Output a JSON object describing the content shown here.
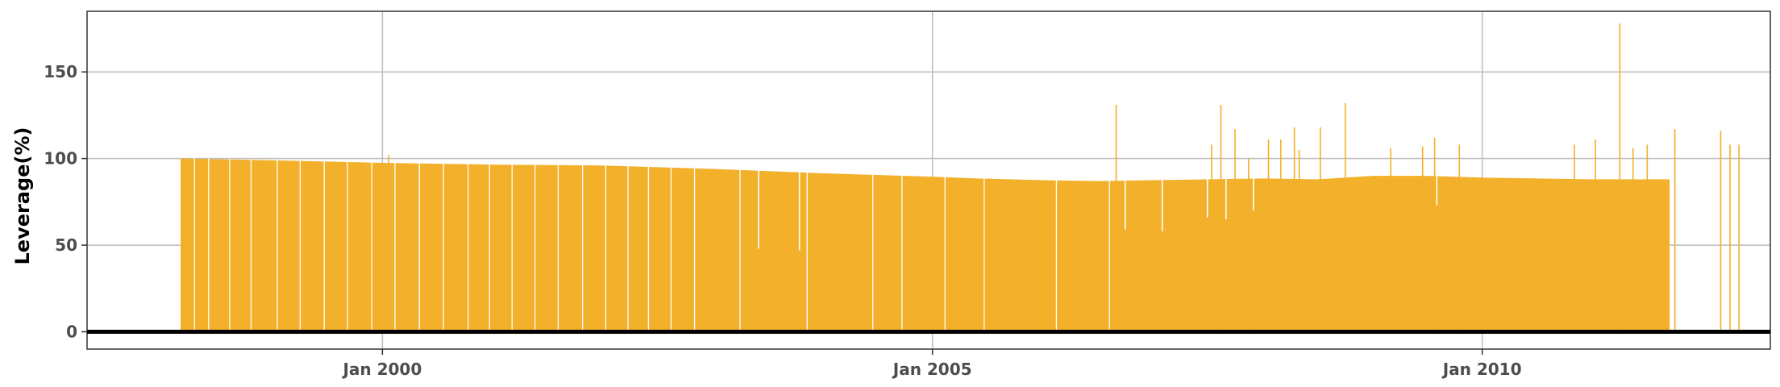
{
  "chart_data": {
    "type": "bar",
    "title": "",
    "xlabel": "",
    "ylabel": "Leverage(%)",
    "x_range": [
      "1997-04-25",
      "2012-08-15"
    ],
    "ylim": [
      -10,
      185
    ],
    "grid": true,
    "legend": "none",
    "colors": {
      "bar": "#f2b02b",
      "baseline": "#000000",
      "grid": "#bdbdbd",
      "axis_text": "#4d4d4d"
    },
    "x_ticks": [
      {
        "date": "2000-01-01",
        "label": "Jan 2000"
      },
      {
        "date": "2005-01-01",
        "label": "Jan 2005"
      },
      {
        "date": "2010-01-01",
        "label": "Jan 2010"
      }
    ],
    "y_ticks": [
      {
        "value": 0,
        "label": "0"
      },
      {
        "value": 50,
        "label": "50"
      },
      {
        "value": 100,
        "label": "100"
      },
      {
        "value": 150,
        "label": "150"
      }
    ],
    "baseline_y": 0,
    "bar_envelope": [
      {
        "date": "1998-03-01",
        "value": 100
      },
      {
        "date": "1999-01-01",
        "value": 99
      },
      {
        "date": "2000-01-01",
        "value": 97.5
      },
      {
        "date": "2001-01-01",
        "value": 96.5
      },
      {
        "date": "2002-01-01",
        "value": 96
      },
      {
        "date": "2003-01-01",
        "value": 94
      },
      {
        "date": "2004-01-01",
        "value": 91.5
      },
      {
        "date": "2005-01-01",
        "value": 89.5
      },
      {
        "date": "2005-06-01",
        "value": 88.5
      },
      {
        "date": "2006-01-01",
        "value": 87.5
      },
      {
        "date": "2006-07-01",
        "value": 87
      },
      {
        "date": "2007-01-01",
        "value": 87.5
      },
      {
        "date": "2007-07-01",
        "value": 88
      },
      {
        "date": "2008-01-01",
        "value": 88.5
      },
      {
        "date": "2008-07-01",
        "value": 88
      },
      {
        "date": "2009-01-01",
        "value": 90
      },
      {
        "date": "2009-07-01",
        "value": 90
      },
      {
        "date": "2010-01-01",
        "value": 89
      },
      {
        "date": "2010-07-01",
        "value": 88.5
      },
      {
        "date": "2011-01-01",
        "value": 88
      },
      {
        "date": "2011-09-15",
        "value": 88
      }
    ],
    "gaps": [
      {
        "date": "1998-04-15",
        "value": 0
      },
      {
        "date": "1998-06-01",
        "value": 0
      },
      {
        "date": "1998-08-10",
        "value": 0
      },
      {
        "date": "1998-10-20",
        "value": 0
      },
      {
        "date": "1999-01-15",
        "value": 0
      },
      {
        "date": "1999-04-01",
        "value": 0
      },
      {
        "date": "1999-06-20",
        "value": 0
      },
      {
        "date": "1999-09-05",
        "value": 0
      },
      {
        "date": "1999-11-25",
        "value": 0
      },
      {
        "date": "2000-02-10",
        "value": 0
      },
      {
        "date": "2000-05-01",
        "value": 0
      },
      {
        "date": "2000-07-20",
        "value": 0
      },
      {
        "date": "2000-10-10",
        "value": 0
      },
      {
        "date": "2000-12-20",
        "value": 0
      },
      {
        "date": "2001-03-05",
        "value": 0
      },
      {
        "date": "2001-05-20",
        "value": 0
      },
      {
        "date": "2001-08-05",
        "value": 0
      },
      {
        "date": "2001-10-25",
        "value": 0
      },
      {
        "date": "2002-01-10",
        "value": 0
      },
      {
        "date": "2002-03-25",
        "value": 0
      },
      {
        "date": "2002-06-01",
        "value": 0
      },
      {
        "date": "2002-08-15",
        "value": 0
      },
      {
        "date": "2002-11-01",
        "value": 0
      },
      {
        "date": "2003-04-01",
        "value": 0
      },
      {
        "date": "2003-11-10",
        "value": 0
      },
      {
        "date": "2004-06-15",
        "value": 0
      },
      {
        "date": "2004-09-20",
        "value": 0
      },
      {
        "date": "2005-02-10",
        "value": 0
      },
      {
        "date": "2005-06-20",
        "value": 0
      },
      {
        "date": "2006-02-15",
        "value": 0
      },
      {
        "date": "2006-08-10",
        "value": 0
      }
    ],
    "spikes": [
      {
        "date": "1998-03-10",
        "value": 100
      },
      {
        "date": "2000-01-20",
        "value": 102
      },
      {
        "date": "2006-09-01",
        "value": 131
      },
      {
        "date": "2007-07-15",
        "value": 108
      },
      {
        "date": "2007-08-15",
        "value": 131
      },
      {
        "date": "2007-10-01",
        "value": 117
      },
      {
        "date": "2007-11-15",
        "value": 100
      },
      {
        "date": "2008-01-20",
        "value": 111
      },
      {
        "date": "2008-03-01",
        "value": 111
      },
      {
        "date": "2008-04-15",
        "value": 118
      },
      {
        "date": "2008-05-01",
        "value": 105
      },
      {
        "date": "2008-07-10",
        "value": 118
      },
      {
        "date": "2008-10-01",
        "value": 132
      },
      {
        "date": "2009-03-01",
        "value": 106
      },
      {
        "date": "2009-06-15",
        "value": 107
      },
      {
        "date": "2009-07-25",
        "value": 112
      },
      {
        "date": "2009-10-15",
        "value": 108
      },
      {
        "date": "2010-11-01",
        "value": 108
      },
      {
        "date": "2011-01-10",
        "value": 111
      },
      {
        "date": "2011-04-01",
        "value": 178
      },
      {
        "date": "2011-05-15",
        "value": 106
      },
      {
        "date": "2011-07-01",
        "value": 108
      },
      {
        "date": "2011-10-01",
        "value": 117
      },
      {
        "date": "2012-03-01",
        "value": 116
      },
      {
        "date": "2012-04-01",
        "value": 108
      },
      {
        "date": "2012-05-01",
        "value": 108
      }
    ],
    "dips": [
      {
        "date": "2003-06-01",
        "value": 48
      },
      {
        "date": "2003-10-15",
        "value": 47
      },
      {
        "date": "2006-10-01",
        "value": 59
      },
      {
        "date": "2007-02-01",
        "value": 58
      },
      {
        "date": "2007-07-01",
        "value": 66
      },
      {
        "date": "2007-09-01",
        "value": 65
      },
      {
        "date": "2007-12-01",
        "value": 70
      },
      {
        "date": "2009-08-01",
        "value": 73
      }
    ]
  }
}
